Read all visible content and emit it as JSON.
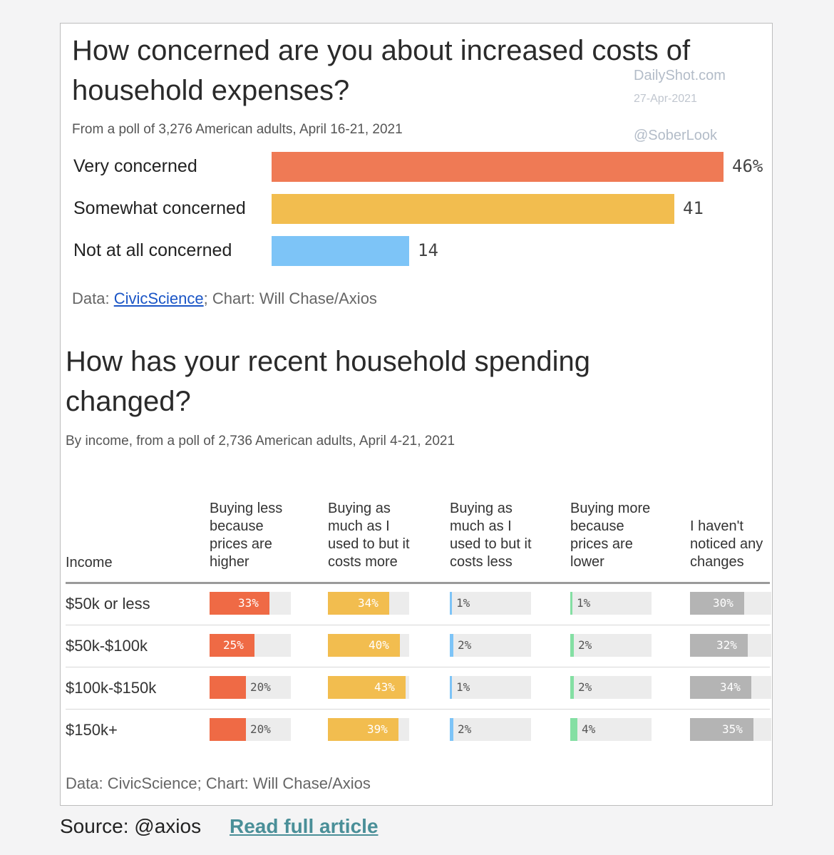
{
  "card1": {
    "title": "How concerned are you about increased costs of household expenses?",
    "subtitle": "From a poll of 3,276 American adults, April 16-21, 2021",
    "credit_prefix": "Data: ",
    "credit_link": "CivicScience",
    "credit_suffix": "; Chart: Will Chase/Axios"
  },
  "watermark": {
    "site": "DailyShot.com",
    "date": "27-Apr-2021",
    "handle": "@SoberLook"
  },
  "card2": {
    "title": "How has your recent household spending changed?",
    "subtitle": "By income, from a poll of 2,736 American adults, April 4-21, 2021",
    "income_header": "Income",
    "credit": "Data: CivicScience; Chart: Will Chase/Axios"
  },
  "footer": {
    "source": "Source: @axios",
    "read_more": "Read full article"
  },
  "chart_data": [
    {
      "type": "bar",
      "orientation": "horizontal",
      "title": "How concerned are you about increased costs of household expenses?",
      "subtitle": "From a poll of 3,276 American adults, April 16-21, 2021",
      "categories": [
        "Very concerned",
        "Somewhat concerned",
        "Not at all concerned"
      ],
      "values": [
        46,
        41,
        14
      ],
      "value_labels": [
        "46%",
        "41",
        "14"
      ],
      "colors": [
        "#ef7a55",
        "#f2bd4f",
        "#7dc4f7"
      ],
      "xlim": [
        0,
        46
      ]
    },
    {
      "type": "table",
      "title": "How has your recent household spending changed?",
      "subtitle": "By income, from a poll of 2,736 American adults, April 4-21, 2021",
      "row_header": "Income",
      "rows": [
        "$50k or less",
        "$50k-$100k",
        "$100k-$150k",
        "$150k+"
      ],
      "columns": [
        {
          "name": "Buying less because prices are higher",
          "color": "#ef6a45",
          "values": [
            33,
            25,
            20,
            20
          ]
        },
        {
          "name": "Buying as much as I used to but it costs more",
          "color": "#f2bd4f",
          "values": [
            34,
            40,
            43,
            39
          ]
        },
        {
          "name": "Buying as much as I used to but it costs less",
          "color": "#7dc4f7",
          "values": [
            1,
            2,
            1,
            2
          ]
        },
        {
          "name": "Buying more because prices are lower",
          "color": "#84dfa3",
          "values": [
            1,
            2,
            2,
            4
          ]
        },
        {
          "name": "I haven't noticed any changes",
          "color": "#b4b4b4",
          "values": [
            30,
            32,
            34,
            35
          ]
        }
      ],
      "scale_max": 45,
      "unit": "%"
    }
  ]
}
